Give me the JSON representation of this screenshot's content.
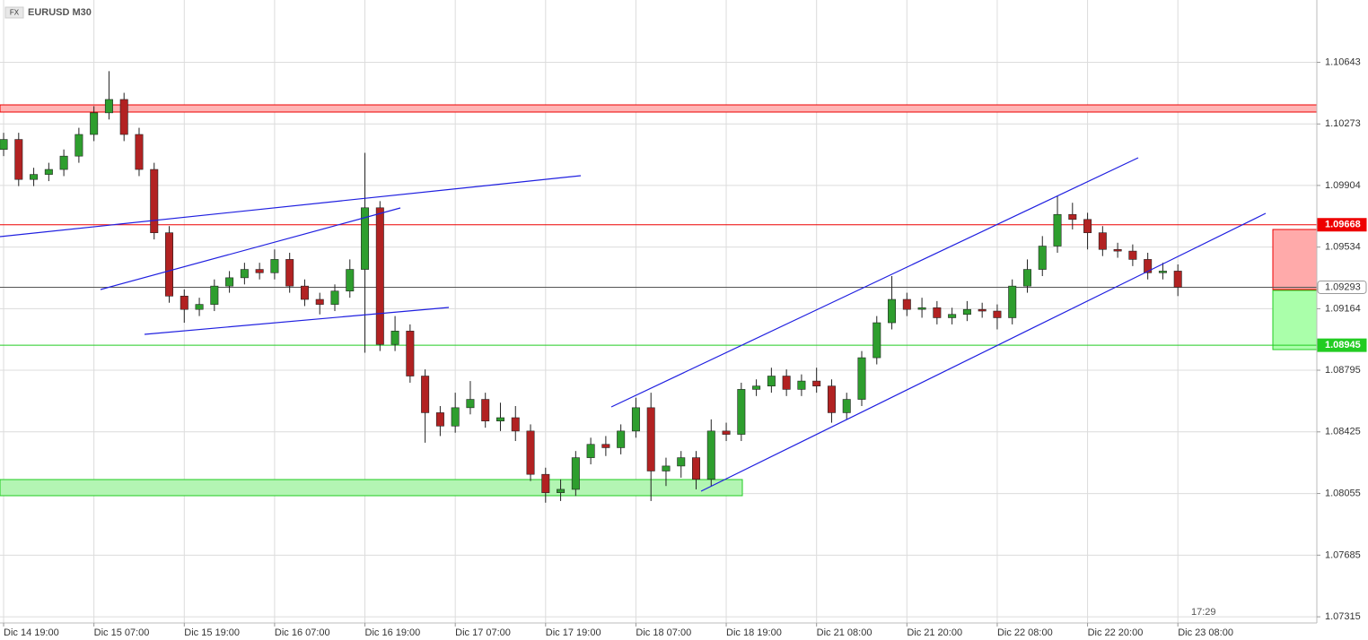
{
  "chart_data": {
    "type": "candlestick",
    "badge": "FX",
    "title": "EURUSD M30",
    "countdown": "17:29",
    "x": [
      0,
      1,
      2,
      3,
      4,
      5,
      6,
      7,
      8,
      9,
      10,
      11,
      12,
      13,
      14,
      15,
      16,
      17,
      18,
      19,
      20,
      21,
      22,
      23,
      24,
      25,
      26,
      27,
      28,
      29,
      30,
      31,
      32,
      33,
      34,
      35,
      36,
      37,
      38,
      39,
      40,
      41,
      42,
      43,
      44,
      45,
      46,
      47,
      48,
      49,
      50,
      51,
      52,
      53,
      54,
      55,
      56,
      57,
      58,
      59,
      60,
      61,
      62,
      63,
      64,
      65,
      66,
      67,
      68,
      69,
      70,
      71,
      72,
      73,
      74,
      75,
      76,
      77,
      78
    ],
    "open": [
      1.1012,
      1.1018,
      1.0994,
      1.0997,
      1.1,
      1.1008,
      1.1021,
      1.1034,
      1.1042,
      1.1021,
      1.1,
      1.0962,
      1.0924,
      1.0916,
      1.0919,
      1.093,
      1.0935,
      1.094,
      1.0938,
      1.0946,
      1.093,
      1.0922,
      1.0919,
      1.0927,
      1.094,
      1.0977,
      1.0895,
      1.0903,
      1.0876,
      1.0854,
      1.0846,
      1.0857,
      1.0862,
      1.0849,
      1.0851,
      1.0843,
      1.0817,
      1.0806,
      1.0808,
      1.0827,
      1.0835,
      1.0833,
      1.0843,
      1.0857,
      1.0819,
      1.0822,
      1.0827,
      1.0814,
      1.0843,
      1.0841,
      1.0868,
      1.087,
      1.0876,
      1.0868,
      1.0873,
      1.087,
      1.0854,
      1.0862,
      1.0887,
      1.0908,
      1.0922,
      1.0916,
      1.0917,
      1.0911,
      1.0913,
      1.0916,
      1.0915,
      1.0911,
      1.093,
      1.094,
      1.0954,
      1.0973,
      1.097,
      1.0962,
      1.0952,
      1.0951,
      1.0946,
      1.0938,
      1.0939
    ],
    "high": [
      1.1022,
      1.1022,
      1.1001,
      1.1004,
      1.1012,
      1.1025,
      1.1038,
      1.1059,
      1.1046,
      1.1025,
      1.1004,
      1.0966,
      1.0928,
      1.0923,
      1.0934,
      1.0939,
      1.0944,
      1.0944,
      1.0952,
      1.095,
      1.0934,
      1.0926,
      1.0931,
      1.0946,
      1.101,
      1.0981,
      1.0912,
      1.0907,
      1.088,
      1.0858,
      1.0866,
      1.0873,
      1.0866,
      1.086,
      1.0858,
      1.0847,
      1.0821,
      1.0814,
      1.0831,
      1.0839,
      1.084,
      1.0847,
      1.0863,
      1.0866,
      1.0827,
      1.0831,
      1.0831,
      1.085,
      1.0848,
      1.0872,
      1.0874,
      1.0881,
      1.088,
      1.0877,
      1.0881,
      1.0874,
      1.0866,
      1.0891,
      1.0912,
      1.0936,
      1.0926,
      1.0923,
      1.0921,
      1.0917,
      1.0921,
      1.092,
      1.0919,
      1.0934,
      1.0946,
      1.096,
      1.0984,
      1.098,
      1.0974,
      1.0966,
      1.0956,
      1.0955,
      1.095,
      1.0944,
      1.0943
    ],
    "low": [
      1.1008,
      1.099,
      1.099,
      1.0993,
      1.0996,
      1.1004,
      1.1017,
      1.103,
      1.1017,
      1.0996,
      1.0958,
      1.092,
      1.0908,
      1.0912,
      1.0915,
      1.0926,
      1.0931,
      1.0934,
      1.0934,
      1.0926,
      1.0918,
      1.0913,
      1.0915,
      1.0923,
      1.089,
      1.0891,
      1.0891,
      1.0872,
      1.0836,
      1.084,
      1.0842,
      1.0853,
      1.0845,
      1.0843,
      1.0837,
      1.0813,
      1.08,
      1.0801,
      1.0804,
      1.0823,
      1.0828,
      1.0829,
      1.0839,
      1.0801,
      1.081,
      1.0815,
      1.0808,
      1.081,
      1.0837,
      1.0837,
      1.0864,
      1.0866,
      1.0864,
      1.0864,
      1.0866,
      1.0848,
      1.085,
      1.0858,
      1.0883,
      1.0904,
      1.0912,
      1.0911,
      1.0907,
      1.0907,
      1.0909,
      1.0911,
      1.0904,
      1.0907,
      1.0926,
      1.0936,
      1.095,
      1.0964,
      1.0952,
      1.0948,
      1.0947,
      1.0942,
      1.0934,
      1.0934,
      1.0924
    ],
    "close": [
      1.1018,
      1.0994,
      1.0997,
      1.1,
      1.1008,
      1.1021,
      1.1034,
      1.1042,
      1.1021,
      1.1,
      1.0962,
      1.0924,
      1.0916,
      1.0919,
      1.093,
      1.0935,
      1.094,
      1.0938,
      1.0946,
      1.093,
      1.0922,
      1.0919,
      1.0927,
      1.094,
      1.0977,
      1.0895,
      1.0903,
      1.0876,
      1.0854,
      1.0846,
      1.0857,
      1.0862,
      1.0849,
      1.0851,
      1.0843,
      1.0817,
      1.0806,
      1.0808,
      1.0827,
      1.0835,
      1.0833,
      1.0843,
      1.0857,
      1.0819,
      1.0822,
      1.0827,
      1.0814,
      1.0843,
      1.0841,
      1.0868,
      1.087,
      1.0876,
      1.0868,
      1.0873,
      1.087,
      1.0854,
      1.0862,
      1.0887,
      1.0908,
      1.0922,
      1.0916,
      1.0917,
      1.0911,
      1.0913,
      1.0916,
      1.0915,
      1.0911,
      1.093,
      1.094,
      1.0954,
      1.0973,
      1.097,
      1.0962,
      1.0952,
      1.0951,
      1.0946,
      1.0938,
      1.0939,
      1.09293
    ],
    "up_color": "#2e9e2e",
    "down_color": "#b22222",
    "xlim": [
      -0.24,
      87.23
    ],
    "xticks": [
      {
        "value": 0,
        "label": "Dic 14 19:00"
      },
      {
        "value": 6,
        "label": "Dic 15 07:00"
      },
      {
        "value": 12,
        "label": "Dic 15 19:00"
      },
      {
        "value": 18,
        "label": "Dic 16 07:00"
      },
      {
        "value": 24,
        "label": "Dic 16 19:00"
      },
      {
        "value": 30,
        "label": "Dic 17 07:00"
      },
      {
        "value": 36,
        "label": "Dic 17 19:00"
      },
      {
        "value": 42,
        "label": "Dic 18 07:00"
      },
      {
        "value": 48,
        "label": "Dic 18 19:00"
      },
      {
        "value": 54,
        "label": "Dic 21 08:00"
      },
      {
        "value": 60,
        "label": "Dic 21 20:00"
      },
      {
        "value": 66,
        "label": "Dic 22 08:00"
      },
      {
        "value": 72,
        "label": "Dic 22 20:00"
      },
      {
        "value": 78,
        "label": "Dic 23 08:00"
      }
    ],
    "ylim": [
      1.07278,
      1.11017
    ],
    "yticks": [
      1.10643,
      1.10273,
      1.09904,
      1.09534,
      1.09164,
      1.08795,
      1.08425,
      1.08055,
      1.07685,
      1.07315
    ],
    "grid": true,
    "levels": [
      {
        "value": 1.09668,
        "color": "#ee0000"
      },
      {
        "value": 1.09293,
        "color": "#555555"
      },
      {
        "value": 1.08945,
        "color": "#22cc22"
      }
    ]
  }
}
